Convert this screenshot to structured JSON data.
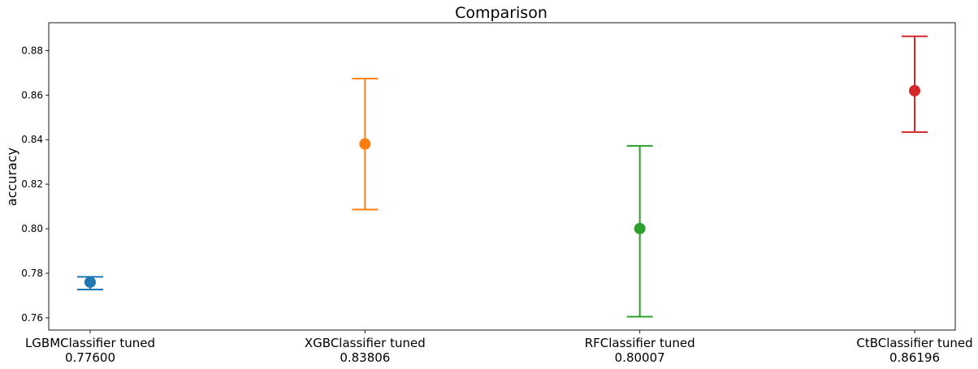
{
  "chart_data": {
    "type": "scatter",
    "title": "Comparison",
    "xlabel": "",
    "ylabel": "accuracy",
    "ylim": [
      0.7545,
      0.8925
    ],
    "yticks": [
      "0.76",
      "0.78",
      "0.80",
      "0.82",
      "0.84",
      "0.86",
      "0.88"
    ],
    "ytick_values": [
      0.76,
      0.78,
      0.8,
      0.82,
      0.84,
      0.86,
      0.88
    ],
    "grid": false,
    "legend": "none",
    "points": [
      {
        "category": "LGBMClassifier tuned",
        "value_label": "0.77600",
        "y": 0.776,
        "err_low": 0.7727,
        "err_high": 0.7784,
        "color": "#1f77b4"
      },
      {
        "category": "XGBClassifier tuned",
        "value_label": "0.83806",
        "y": 0.83806,
        "err_low": 0.8086,
        "err_high": 0.8674,
        "color": "#ff7f0e"
      },
      {
        "category": "RFClassifier tuned",
        "value_label": "0.80007",
        "y": 0.80007,
        "err_low": 0.7605,
        "err_high": 0.8372,
        "color": "#2ca02c"
      },
      {
        "category": "CtBClassifier tuned",
        "value_label": "0.86196",
        "y": 0.86196,
        "err_low": 0.8434,
        "err_high": 0.8864,
        "color": "#d62728"
      }
    ]
  }
}
